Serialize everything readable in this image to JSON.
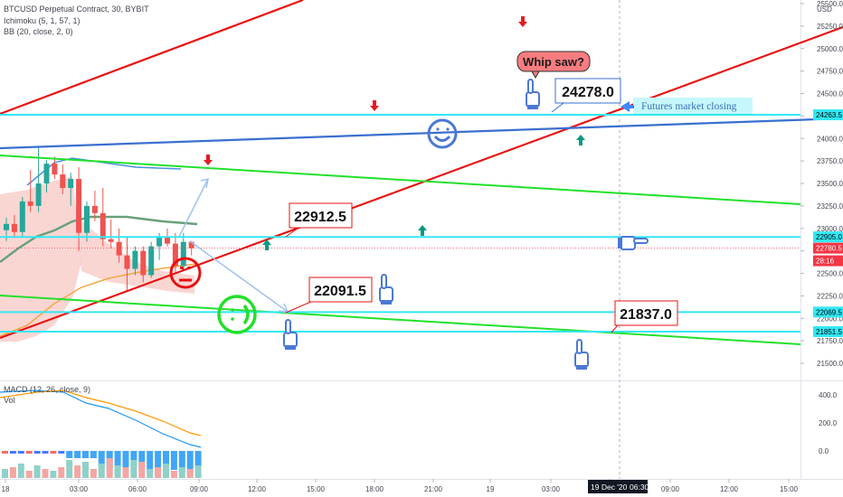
{
  "header": {
    "symbol_line": "BTCUSD Perpetual Contract, 30, BYBIT",
    "ichimoku": "Ichimoku (5, 1, 57, 1)",
    "bb": "BB (20, close, 2, 0)",
    "macd": "MACD (12, 26, close, 9)",
    "vol": "Vol"
  },
  "price_axis": {
    "currency": "USD",
    "ticks": [
      "25500.0",
      "25250.0",
      "25000.0",
      "24750.0",
      "24500.0",
      "24250.0",
      "24000.0",
      "23750.0",
      "23500.0",
      "23250.0",
      "23000.0",
      "22750.0",
      "22500.0",
      "22250.0",
      "22000.0",
      "21750.0",
      "21500.0"
    ],
    "badges": [
      {
        "label": "24263.5",
        "color": "#31e8f5",
        "text_color": "#000000"
      },
      {
        "label": "22905.0",
        "color": "#31e8f5",
        "text_color": "#000000"
      },
      {
        "label": "22780.5",
        "color": "#f23645",
        "text_color": "#ffffff"
      },
      {
        "label": "28:16",
        "color": "#f23645",
        "text_color": "#ffffff"
      },
      {
        "label": "22069.5",
        "color": "#31e8f5",
        "text_color": "#000000"
      },
      {
        "label": "21851.5",
        "color": "#31e8f5",
        "text_color": "#000000"
      }
    ]
  },
  "macd_axis": {
    "ticks": [
      "400.0",
      "200.0",
      "0.0"
    ]
  },
  "time_axis": {
    "ticks": [
      "18",
      "03:00",
      "06:00",
      "09:00",
      "12:00",
      "15:00",
      "18:00",
      "21:00",
      "19",
      "03:00",
      "06:00",
      "09:00",
      "12:00",
      "15:00"
    ],
    "crosshair_date": "19 Dec '20",
    "crosshair_time": "06:30"
  },
  "annotations": {
    "whip_saw": "Whip saw?",
    "futures_close": "Futures market closing",
    "callouts": [
      "24278.0",
      "22912.5",
      "22091.5",
      "21837.0"
    ]
  },
  "colors": {
    "horizontal_line": "#31e8f5",
    "red_trend": "#e81010",
    "blue_trend": "#3a6fd0",
    "green_trend": "#22e02b",
    "up_candle": "#26a69a",
    "down_candle": "#ef5350",
    "marker_up": "#089981",
    "marker_down": "#e51c23",
    "hand": "#4b78d4"
  },
  "chart_data": {
    "type": "candlestick",
    "symbol": "BTCUSD Perpetual Contract",
    "interval": "30",
    "exchange": "BYBIT",
    "ylim": [
      21350,
      25600
    ],
    "candles": [
      {
        "o": 22980,
        "h": 23120,
        "l": 22860,
        "c": 23050
      },
      {
        "o": 23050,
        "h": 23150,
        "l": 22900,
        "c": 22960
      },
      {
        "o": 22960,
        "h": 23350,
        "l": 22900,
        "c": 23300
      },
      {
        "o": 23300,
        "h": 23650,
        "l": 23180,
        "c": 23250
      },
      {
        "o": 23250,
        "h": 23900,
        "l": 23180,
        "c": 23500
      },
      {
        "o": 23500,
        "h": 23760,
        "l": 23400,
        "c": 23720
      },
      {
        "o": 23720,
        "h": 23800,
        "l": 23550,
        "c": 23600
      },
      {
        "o": 23600,
        "h": 23710,
        "l": 23380,
        "c": 23450
      },
      {
        "o": 23450,
        "h": 23620,
        "l": 23250,
        "c": 23550
      },
      {
        "o": 23550,
        "h": 23680,
        "l": 22750,
        "c": 22950
      },
      {
        "o": 22950,
        "h": 23300,
        "l": 22850,
        "c": 23250
      },
      {
        "o": 23250,
        "h": 23420,
        "l": 23080,
        "c": 23170
      },
      {
        "o": 23170,
        "h": 23450,
        "l": 22800,
        "c": 22880
      },
      {
        "o": 22880,
        "h": 23100,
        "l": 22780,
        "c": 22850
      },
      {
        "o": 22850,
        "h": 23000,
        "l": 22620,
        "c": 22700
      },
      {
        "o": 22700,
        "h": 22900,
        "l": 22300,
        "c": 22550
      },
      {
        "o": 22550,
        "h": 22800,
        "l": 22480,
        "c": 22750
      },
      {
        "o": 22750,
        "h": 22800,
        "l": 22400,
        "c": 22480
      },
      {
        "o": 22480,
        "h": 22850,
        "l": 22450,
        "c": 22800
      },
      {
        "o": 22800,
        "h": 22950,
        "l": 22650,
        "c": 22900
      },
      {
        "o": 22900,
        "h": 23000,
        "l": 22800,
        "c": 22830
      },
      {
        "o": 22830,
        "h": 22950,
        "l": 22500,
        "c": 22580
      },
      {
        "o": 22580,
        "h": 22950,
        "l": 22520,
        "c": 22850
      },
      {
        "o": 22850,
        "h": 22860,
        "l": 22700,
        "c": 22780
      }
    ],
    "horizontal_levels": [
      24263.5,
      22905.0,
      22069.5,
      21851.5,
      22780.5
    ],
    "macd_ylim": [
      -150,
      450
    ]
  }
}
